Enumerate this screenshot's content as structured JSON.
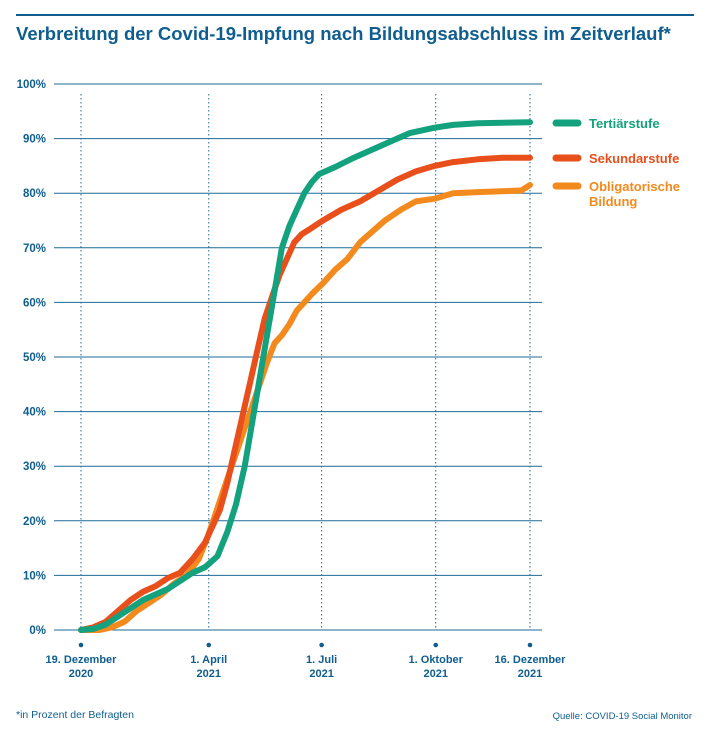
{
  "title": "Verbreitung der Covid-19-Impfung nach Bildungsabschluss im Zeitverlauf*",
  "footnote": "*in Prozent der Befragten",
  "source": "Quelle: COVID-19 Social Monitor",
  "colors": {
    "text": "#0f5e8f",
    "grid": "#1d6a99",
    "tertiary": "#13a17e",
    "secondary": "#e84f1b",
    "compulsory": "#f38a1e"
  },
  "chart_data": {
    "type": "line",
    "title": "Verbreitung der Covid-19-Impfung nach Bildungsabschluss im Zeitverlauf*",
    "xlabel": "",
    "ylabel": "",
    "ylim": [
      0,
      100
    ],
    "xlim": [
      0,
      362
    ],
    "y_ticks": [
      0,
      10,
      20,
      30,
      40,
      50,
      60,
      70,
      80,
      90,
      100
    ],
    "y_tick_labels": [
      "0%",
      "10%",
      "20%",
      "30%",
      "40%",
      "50%",
      "60%",
      "70%",
      "80%",
      "90%",
      "100%"
    ],
    "x_ticks": [
      {
        "day": 0,
        "line1": "19. Dezember",
        "line2": "2020"
      },
      {
        "day": 103,
        "line1": "1. April",
        "line2": "2021"
      },
      {
        "day": 194,
        "line1": "1. Juli",
        "line2": "2021"
      },
      {
        "day": 286,
        "line1": "1. Oktober",
        "line2": "2021"
      },
      {
        "day": 362,
        "line1": "16. Dezember",
        "line2": "2021"
      }
    ],
    "x_unit": "days since 19. Dezember 2020",
    "series": [
      {
        "name": "Tertiärstufe",
        "color": "#13a17e",
        "points": [
          [
            0,
            0
          ],
          [
            10,
            0.2
          ],
          [
            20,
            1
          ],
          [
            30,
            2.5
          ],
          [
            40,
            4
          ],
          [
            50,
            5.5
          ],
          [
            60,
            6.5
          ],
          [
            70,
            7.5
          ],
          [
            80,
            9
          ],
          [
            90,
            10.5
          ],
          [
            100,
            11.5
          ],
          [
            110,
            13.5
          ],
          [
            118,
            18
          ],
          [
            125,
            23
          ],
          [
            132,
            30
          ],
          [
            138,
            38
          ],
          [
            144,
            46
          ],
          [
            150,
            54
          ],
          [
            156,
            62
          ],
          [
            162,
            70
          ],
          [
            168,
            74
          ],
          [
            174,
            77
          ],
          [
            180,
            80
          ],
          [
            186,
            82
          ],
          [
            192,
            83.5
          ],
          [
            205,
            84.8
          ],
          [
            220,
            86.5
          ],
          [
            235,
            88
          ],
          [
            250,
            89.5
          ],
          [
            265,
            91
          ],
          [
            285,
            92
          ],
          [
            300,
            92.5
          ],
          [
            320,
            92.8
          ],
          [
            362,
            93
          ]
        ]
      },
      {
        "name": "Sekundarstufe",
        "color": "#e84f1b",
        "points": [
          [
            0,
            0
          ],
          [
            10,
            0.5
          ],
          [
            20,
            1.5
          ],
          [
            30,
            3.5
          ],
          [
            40,
            5.5
          ],
          [
            50,
            7
          ],
          [
            60,
            8
          ],
          [
            70,
            9.5
          ],
          [
            80,
            10.5
          ],
          [
            90,
            13
          ],
          [
            100,
            16
          ],
          [
            106,
            19
          ],
          [
            112,
            22
          ],
          [
            118,
            27
          ],
          [
            124,
            33
          ],
          [
            130,
            39
          ],
          [
            136,
            45
          ],
          [
            142,
            51
          ],
          [
            148,
            57
          ],
          [
            154,
            61
          ],
          [
            160,
            65
          ],
          [
            166,
            68
          ],
          [
            172,
            71
          ],
          [
            178,
            72.5
          ],
          [
            185,
            73.5
          ],
          [
            195,
            75
          ],
          [
            210,
            77
          ],
          [
            225,
            78.5
          ],
          [
            240,
            80.5
          ],
          [
            255,
            82.5
          ],
          [
            270,
            84
          ],
          [
            285,
            85
          ],
          [
            300,
            85.7
          ],
          [
            320,
            86.2
          ],
          [
            340,
            86.5
          ],
          [
            362,
            86.5
          ]
        ]
      },
      {
        "name": "Obligatorische Bildung",
        "name_lines": [
          "Obligatorische",
          "Bildung"
        ],
        "color": "#f38a1e",
        "points": [
          [
            0,
            0
          ],
          [
            15,
            0
          ],
          [
            25,
            0.5
          ],
          [
            35,
            1.5
          ],
          [
            45,
            3.5
          ],
          [
            55,
            5
          ],
          [
            65,
            6.5
          ],
          [
            75,
            8.5
          ],
          [
            85,
            10
          ],
          [
            95,
            13
          ],
          [
            102,
            17
          ],
          [
            108,
            21
          ],
          [
            114,
            25
          ],
          [
            120,
            29
          ],
          [
            126,
            33
          ],
          [
            132,
            37
          ],
          [
            138,
            41
          ],
          [
            144,
            45
          ],
          [
            150,
            49
          ],
          [
            156,
            52.5
          ],
          [
            162,
            54
          ],
          [
            168,
            56
          ],
          [
            174,
            58.5
          ],
          [
            180,
            60
          ],
          [
            186,
            61.5
          ],
          [
            195,
            63.5
          ],
          [
            205,
            66
          ],
          [
            215,
            68
          ],
          [
            225,
            71
          ],
          [
            235,
            73
          ],
          [
            245,
            75
          ],
          [
            258,
            77
          ],
          [
            270,
            78.5
          ],
          [
            285,
            79
          ],
          [
            300,
            80
          ],
          [
            320,
            80.2
          ],
          [
            355,
            80.5
          ],
          [
            362,
            81.5
          ]
        ]
      }
    ]
  }
}
